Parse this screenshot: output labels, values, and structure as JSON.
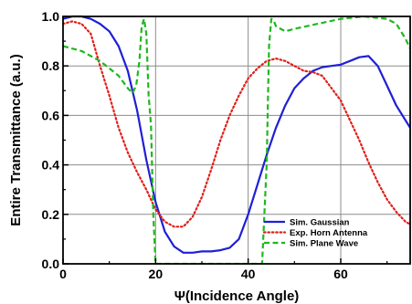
{
  "chart_data": {
    "type": "line",
    "xlabel": "Ψ(Incidence Angle)",
    "ylabel": "Entire Transmittance (a.u.)",
    "xlim": [
      0,
      75
    ],
    "ylim": [
      0,
      1.0
    ],
    "x_ticks": [
      0,
      20,
      40,
      60
    ],
    "y_ticks": [
      0.0,
      0.2,
      0.4,
      0.6,
      0.8,
      1.0
    ],
    "x_tick_labels": [
      "0",
      "20",
      "40",
      "60"
    ],
    "y_tick_labels": [
      "0.0",
      "0.2",
      "0.4",
      "0.6",
      "0.8",
      "1.0"
    ],
    "grid": true,
    "legend_position": "bottom-right",
    "series": [
      {
        "name": "Sim. Gaussian",
        "color": "#1f1fd6",
        "style": "solid",
        "x": [
          0,
          2,
          4,
          6,
          8,
          10,
          12,
          14,
          16,
          18,
          20,
          22,
          24,
          26,
          28,
          30,
          32,
          34,
          36,
          38,
          40,
          42,
          44,
          46,
          48,
          50,
          52,
          54,
          56,
          58,
          60,
          62,
          64,
          66,
          68,
          70,
          72,
          74,
          75
        ],
        "y": [
          0.99,
          1.0,
          1.0,
          0.99,
          0.97,
          0.94,
          0.88,
          0.78,
          0.62,
          0.42,
          0.25,
          0.13,
          0.07,
          0.045,
          0.045,
          0.05,
          0.05,
          0.055,
          0.065,
          0.1,
          0.2,
          0.32,
          0.44,
          0.55,
          0.64,
          0.71,
          0.75,
          0.78,
          0.795,
          0.8,
          0.805,
          0.82,
          0.835,
          0.84,
          0.8,
          0.72,
          0.64,
          0.58,
          0.55
        ]
      },
      {
        "name": "Exp. Horn Antenna",
        "color": "#e0201a",
        "style": "dotted",
        "x": [
          0,
          2,
          4,
          6,
          8,
          10,
          12,
          14,
          16,
          18,
          20,
          22,
          24,
          26,
          28,
          30,
          32,
          34,
          36,
          38,
          40,
          42,
          44,
          46,
          48,
          50,
          52,
          54,
          56,
          58,
          60,
          62,
          64,
          66,
          68,
          70,
          72,
          74,
          75
        ],
        "y": [
          0.97,
          0.98,
          0.97,
          0.93,
          0.8,
          0.68,
          0.55,
          0.45,
          0.37,
          0.3,
          0.22,
          0.17,
          0.15,
          0.15,
          0.19,
          0.27,
          0.38,
          0.5,
          0.6,
          0.68,
          0.75,
          0.79,
          0.82,
          0.83,
          0.82,
          0.8,
          0.78,
          0.775,
          0.76,
          0.71,
          0.66,
          0.58,
          0.5,
          0.41,
          0.33,
          0.26,
          0.21,
          0.17,
          0.16
        ]
      },
      {
        "name": "Sim. Plane Wave",
        "color": "#1fb81f",
        "style": "dashed",
        "x": [
          0,
          2,
          4,
          6,
          8,
          10,
          12,
          14,
          15,
          15.8,
          16.5,
          17,
          17.5,
          18,
          18.5,
          19,
          19.5,
          20,
          22,
          30,
          40,
          42,
          43,
          44,
          44.5,
          45,
          45.5,
          46,
          48,
          50,
          55,
          60,
          65,
          70,
          72,
          74,
          75
        ],
        "y": [
          0.88,
          0.87,
          0.86,
          0.84,
          0.82,
          0.79,
          0.76,
          0.71,
          0.69,
          0.72,
          0.82,
          0.96,
          0.99,
          0.93,
          0.68,
          0.56,
          0.2,
          0.0,
          0.0,
          0.0,
          0.0,
          0.0,
          0.0,
          0.4,
          0.88,
          0.99,
          0.985,
          0.96,
          0.94,
          0.95,
          0.97,
          0.99,
          1.0,
          0.99,
          0.97,
          0.91,
          0.87
        ]
      }
    ]
  }
}
